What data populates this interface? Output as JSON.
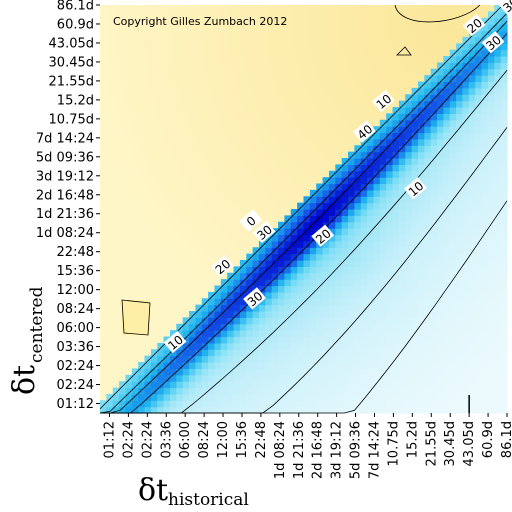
{
  "chart_data": {
    "type": "heatmap",
    "copyright": "Copyright Gilles Zumbach 2012",
    "xlabel_symbol": "δt",
    "xlabel_subscript": "historical",
    "ylabel_symbol": "δt",
    "ylabel_subscript": "centered",
    "x_ticks": [
      "01:12",
      "02:24",
      "02:24",
      "03:36",
      "06:00",
      "08:24",
      "12:00",
      "15:36",
      "22:48",
      "1d 08:24",
      "1d 21:36",
      "2d 16:48",
      "3d 19:12",
      "5d 09:36",
      "7d 14:24",
      "10.75d",
      "15.2d",
      "21.55d",
      "30.45d",
      "43.05d",
      "60.9d",
      "86.1d"
    ],
    "y_ticks": [
      "01:12",
      "02:24",
      "02:24",
      "03:36",
      "06:00",
      "08:24",
      "12:00",
      "15:36",
      "22:48",
      "1d 08:24",
      "1d 21:36",
      "2d 16:48",
      "3d 19:12",
      "5d 09:36",
      "7d 14:24",
      "10.75d",
      "15.2d",
      "21.55d",
      "30.45d",
      "43.05d",
      "60.9d",
      "86.1d"
    ],
    "contour_labels": [
      {
        "text": "10",
        "x": 3.5,
        "y": 3.2
      },
      {
        "text": "20",
        "x": 6.0,
        "y": 7.2
      },
      {
        "text": "30",
        "x": 8.2,
        "y": 9.0
      },
      {
        "text": "0",
        "x": 7.5,
        "y": 9.6
      },
      {
        "text": "30",
        "x": 7.7,
        "y": 5.5
      },
      {
        "text": "20",
        "x": 11.3,
        "y": 8.8
      },
      {
        "text": "10",
        "x": 16.2,
        "y": 11.3
      },
      {
        "text": "40",
        "x": 13.5,
        "y": 14.3
      },
      {
        "text": "10",
        "x": 14.5,
        "y": 15.9
      },
      {
        "text": "20",
        "x": 19.3,
        "y": 19.9
      },
      {
        "text": "30",
        "x": 20.3,
        "y": 19.0
      },
      {
        "text": "30",
        "x": 21.2,
        "y": 21.0
      }
    ],
    "colorscale": {
      "negative": "#ffffff",
      "near_zero": "#fde98c",
      "low_positive": "#d8f5fb",
      "mid_positive": "#22c8ee",
      "high_positive": "#0000cc"
    }
  }
}
